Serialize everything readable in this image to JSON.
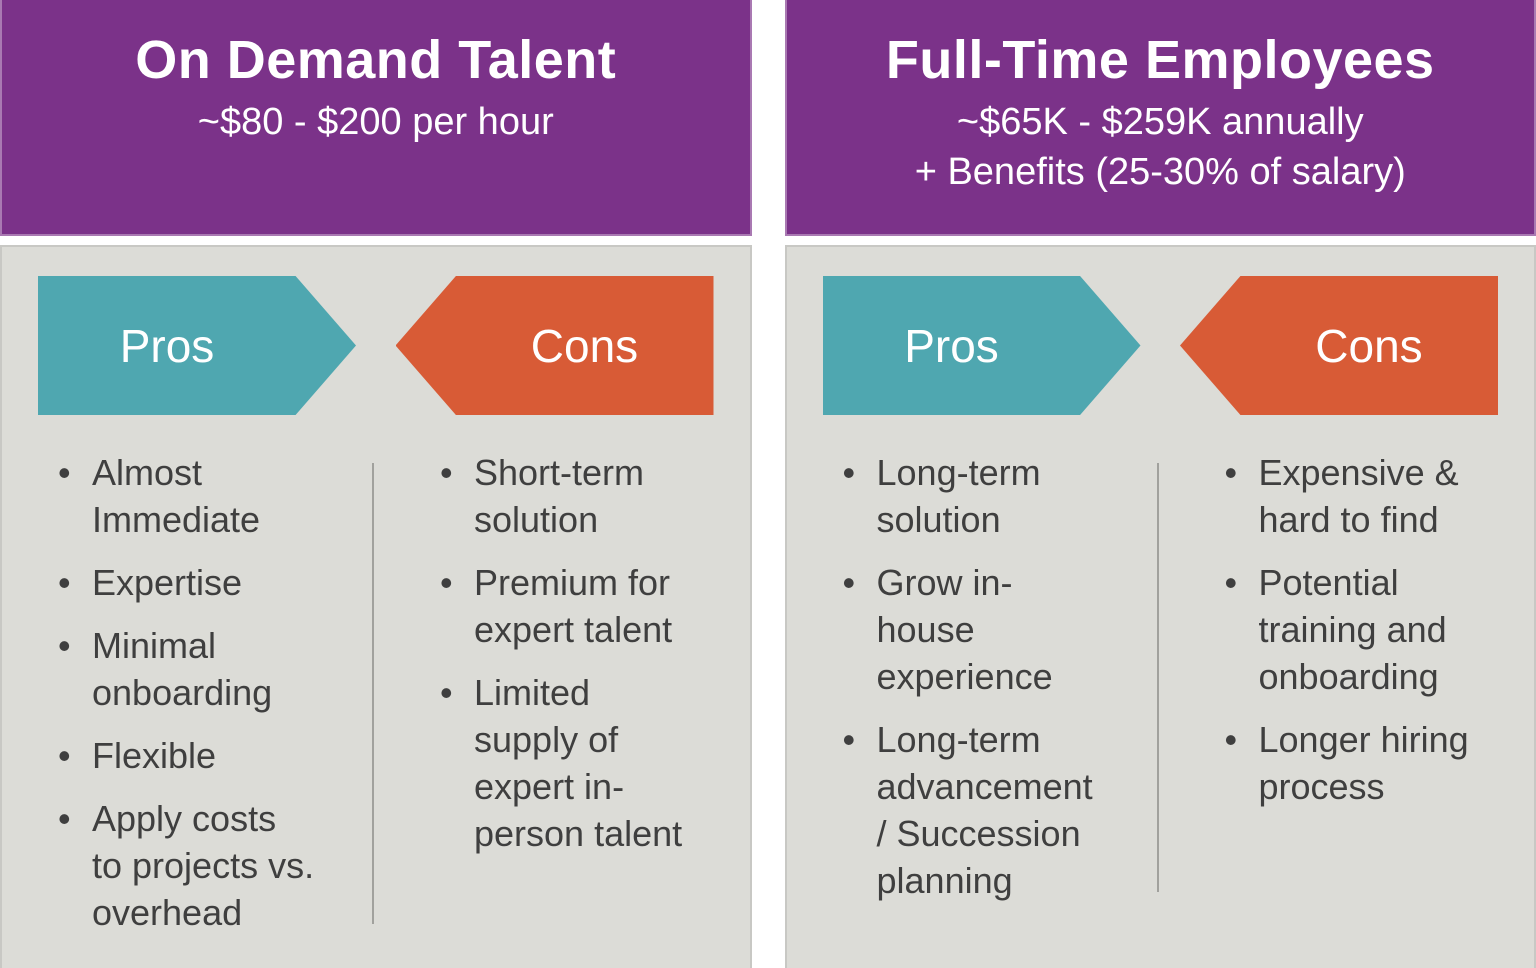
{
  "colors": {
    "header_bg": "#7B3289",
    "header_text": "#FFFFFF",
    "body_bg": "#DCDCD7",
    "body_border": "#C8C8C4",
    "pros_arrow_bg": "#4FA7B0",
    "cons_arrow_bg": "#D85B36",
    "arrow_text": "#FFFFFF",
    "list_text": "#3F3F3F",
    "divider": "#A1A19D",
    "page_bg": "#FFFFFF"
  },
  "bullet_glyph": "•",
  "panels": [
    {
      "title": "On Demand Talent",
      "subtitle": "~$80 - $200 per hour",
      "pros_label": "Pros",
      "cons_label": "Cons",
      "pros": [
        "Almost\nImmediate",
        "Expertise",
        "Minimal\nonboarding",
        "Flexible",
        "Apply costs\nto projects vs.\noverhead"
      ],
      "cons": [
        "Short-term\nsolution",
        "Premium for\nexpert talent",
        "Limited\nsupply of\nexpert in-\nperson talent"
      ]
    },
    {
      "title": "Full-Time Employees",
      "subtitle": "~$65K - $259K annually\n+ Benefits (25-30% of salary)",
      "pros_label": "Pros",
      "cons_label": "Cons",
      "pros": [
        "Long-term\nsolution",
        "Grow in-\nhouse\nexperience",
        "Long-term\nadvancement\n/ Succession\nplanning"
      ],
      "cons": [
        "Expensive &\nhard to find",
        "Potential\ntraining and\nonboarding",
        "Longer hiring\nprocess"
      ]
    }
  ]
}
